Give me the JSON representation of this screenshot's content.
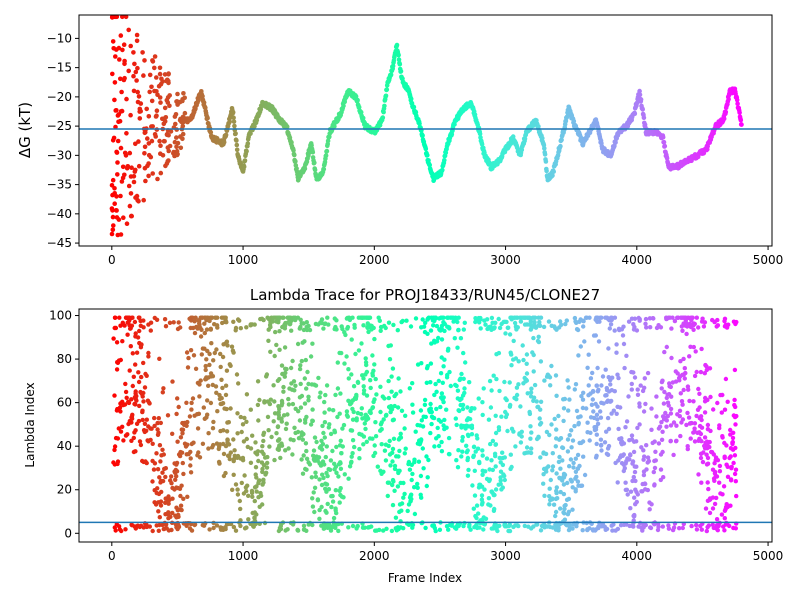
{
  "chart_data": [
    {
      "type": "scatter",
      "title": "",
      "xlabel": "",
      "ylabel": "ΔG (kT)",
      "xlim": [
        -250,
        5030
      ],
      "ylim": [
        -45.5,
        -6
      ],
      "xticks": [
        0,
        1000,
        2000,
        3000,
        4000,
        5000
      ],
      "yticks": [
        -45,
        -40,
        -35,
        -30,
        -25,
        -20,
        -15,
        -10
      ],
      "grid": false,
      "colormap": "rainbow",
      "hline": -25.5,
      "hline_color": "#1f77b4",
      "x_max": 4800,
      "trace_keypoints": [
        [
          0,
          -26
        ],
        [
          60,
          -24
        ],
        [
          130,
          -22
        ],
        [
          220,
          -19
        ],
        [
          330,
          -20
        ],
        [
          440,
          -21
        ],
        [
          520,
          -24
        ],
        [
          600,
          -24
        ],
        [
          680,
          -19
        ],
        [
          760,
          -27
        ],
        [
          850,
          -28
        ],
        [
          920,
          -22
        ],
        [
          960,
          -30
        ],
        [
          1000,
          -33
        ],
        [
          1040,
          -27
        ],
        [
          1100,
          -24
        ],
        [
          1150,
          -21
        ],
        [
          1220,
          -22
        ],
        [
          1280,
          -24
        ],
        [
          1330,
          -25
        ],
        [
          1380,
          -29
        ],
        [
          1420,
          -34
        ],
        [
          1470,
          -32
        ],
        [
          1520,
          -28
        ],
        [
          1560,
          -34
        ],
        [
          1610,
          -33
        ],
        [
          1660,
          -26
        ],
        [
          1740,
          -23
        ],
        [
          1800,
          -19
        ],
        [
          1860,
          -20
        ],
        [
          1930,
          -25
        ],
        [
          2000,
          -26
        ],
        [
          2060,
          -24
        ],
        [
          2100,
          -18
        ],
        [
          2140,
          -15
        ],
        [
          2170,
          -11
        ],
        [
          2210,
          -17
        ],
        [
          2260,
          -19
        ],
        [
          2300,
          -22
        ],
        [
          2350,
          -25
        ],
        [
          2400,
          -30
        ],
        [
          2450,
          -34
        ],
        [
          2510,
          -33
        ],
        [
          2560,
          -28
        ],
        [
          2620,
          -24
        ],
        [
          2680,
          -22
        ],
        [
          2740,
          -21
        ],
        [
          2790,
          -25
        ],
        [
          2840,
          -30
        ],
        [
          2890,
          -32
        ],
        [
          2950,
          -31
        ],
        [
          3000,
          -29
        ],
        [
          3060,
          -27
        ],
        [
          3110,
          -30
        ],
        [
          3160,
          -26
        ],
        [
          3230,
          -24
        ],
        [
          3290,
          -28
        ],
        [
          3320,
          -34
        ],
        [
          3360,
          -33
        ],
        [
          3420,
          -28
        ],
        [
          3480,
          -22
        ],
        [
          3530,
          -25
        ],
        [
          3590,
          -28
        ],
        [
          3640,
          -26
        ],
        [
          3690,
          -24
        ],
        [
          3740,
          -29
        ],
        [
          3800,
          -30
        ],
        [
          3860,
          -26
        ],
        [
          3920,
          -25
        ],
        [
          3980,
          -23
        ],
        [
          4020,
          -19
        ],
        [
          4070,
          -26
        ],
        [
          4150,
          -26
        ],
        [
          4200,
          -27
        ],
        [
          4240,
          -32
        ],
        [
          4300,
          -32
        ],
        [
          4380,
          -31
        ],
        [
          4460,
          -30
        ],
        [
          4530,
          -29
        ],
        [
          4600,
          -25
        ],
        [
          4660,
          -24
        ],
        [
          4710,
          -19
        ],
        [
          4750,
          -19
        ],
        [
          4800,
          -25
        ]
      ]
    },
    {
      "type": "scatter",
      "title": "Lambda Trace for PROJ18433/RUN45/CLONE27",
      "xlabel": "Frame Index",
      "ylabel": "Lambda Index",
      "xlim": [
        -250,
        5030
      ],
      "ylim": [
        -4,
        103
      ],
      "xticks": [
        0,
        1000,
        2000,
        3000,
        4000,
        5000
      ],
      "yticks": [
        0,
        20,
        40,
        60,
        80,
        100
      ],
      "grid": false,
      "colormap": "rainbow",
      "hline": 5,
      "hline_color": "#1f77b4",
      "x_max": 4800,
      "lambda_range": [
        1,
        99
      ]
    }
  ]
}
